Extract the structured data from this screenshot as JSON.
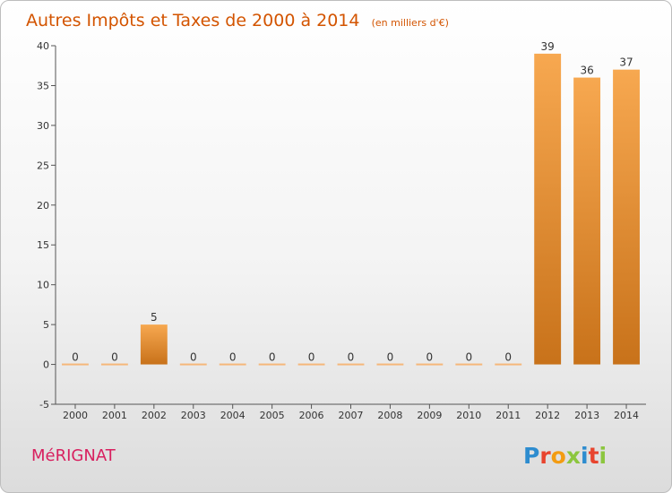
{
  "chart_data": {
    "type": "bar",
    "title": "Autres Impôts et Taxes de 2000 à 2014",
    "subtitle": "(en milliers d'€)",
    "categories": [
      "2000",
      "2001",
      "2002",
      "2003",
      "2004",
      "2005",
      "2006",
      "2007",
      "2008",
      "2009",
      "2010",
      "2011",
      "2012",
      "2013",
      "2014"
    ],
    "values": [
      0,
      0,
      5,
      0,
      0,
      0,
      0,
      0,
      0,
      0,
      0,
      0,
      39,
      36,
      37
    ],
    "data_labels": [
      "0",
      "0",
      "5",
      "0",
      "0",
      "0",
      "0",
      "0",
      "0",
      "0",
      "0",
      "0",
      "39",
      "36",
      "37"
    ],
    "xlabel": "",
    "ylabel": "",
    "ylim": [
      -5,
      40
    ],
    "yticks": [
      -5,
      0,
      5,
      10,
      15,
      20,
      25,
      30,
      35,
      40
    ],
    "grid": false,
    "legend": "none",
    "bar_color_light": "#f7a850",
    "bar_color_dark": "#c8721a",
    "zero_bar_color": "#f5b77a",
    "title_color": "#d35400"
  },
  "footer": {
    "place": "MéRIGNAT",
    "brand": "Proxiti",
    "brand_colors": [
      "#2d8ccf",
      "#e8442e",
      "#f39c12",
      "#8cc63e",
      "#2d8ccf",
      "#e8442e",
      "#8cc63e"
    ]
  }
}
